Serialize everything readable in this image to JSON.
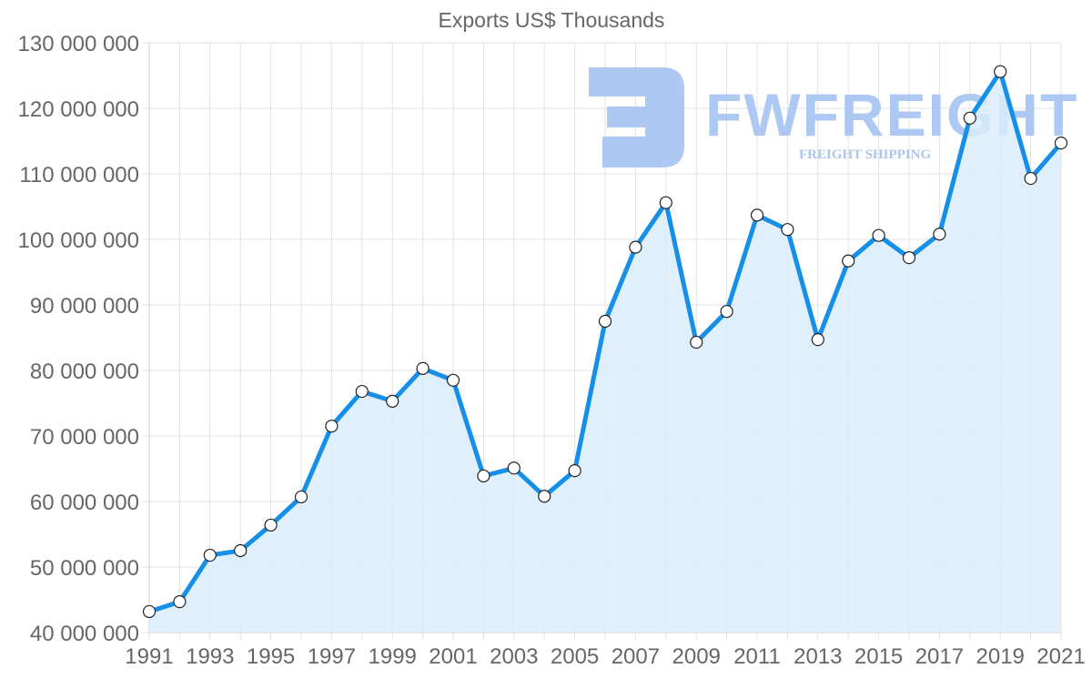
{
  "chart_data": {
    "type": "area",
    "title": "Exports US$ Thousands",
    "xlabel": "",
    "ylabel": "",
    "x": [
      1991,
      1992,
      1993,
      1994,
      1995,
      1996,
      1997,
      1998,
      1999,
      2000,
      2001,
      2002,
      2003,
      2004,
      2005,
      2006,
      2007,
      2008,
      2009,
      2010,
      2011,
      2012,
      2013,
      2014,
      2015,
      2016,
      2017,
      2018,
      2019,
      2020,
      2021
    ],
    "series": [
      {
        "name": "Exports US$ Thousands",
        "values": [
          43200000,
          44700000,
          51800000,
          52500000,
          56400000,
          60700000,
          71500000,
          76800000,
          75300000,
          80300000,
          78500000,
          63900000,
          65100000,
          60800000,
          64700000,
          87500000,
          98800000,
          105600000,
          84300000,
          89000000,
          103700000,
          101500000,
          84700000,
          96700000,
          100600000,
          97200000,
          100800000,
          118500000,
          125600000,
          109300000,
          114700000
        ]
      }
    ],
    "ylim": [
      40000000,
      130000000
    ],
    "yticks": [
      40000000,
      50000000,
      60000000,
      70000000,
      80000000,
      90000000,
      100000000,
      110000000,
      120000000,
      130000000
    ],
    "ytick_labels": [
      "40 000 000",
      "50 000 000",
      "60 000 000",
      "70 000 000",
      "80 000 000",
      "90 000 000",
      "100 000 000",
      "110 000 000",
      "120 000 000",
      "130 000 000"
    ],
    "xtick_labels": [
      "1991",
      "1993",
      "1995",
      "1997",
      "1999",
      "2001",
      "2003",
      "2005",
      "2007",
      "2009",
      "2011",
      "2013",
      "2015",
      "2017",
      "2019",
      "2021"
    ],
    "grid": true,
    "legend": "none"
  },
  "colors": {
    "line": "#168fe8",
    "fill": "#d9ecfc",
    "grid": "#e1e1e1",
    "text": "#666666",
    "watermark": "#a9c6f2",
    "watermark_sub": "#a6c2ec"
  },
  "watermark": {
    "brand": "FWFREIGHT",
    "tagline": "FREIGHT SHIPPING"
  }
}
